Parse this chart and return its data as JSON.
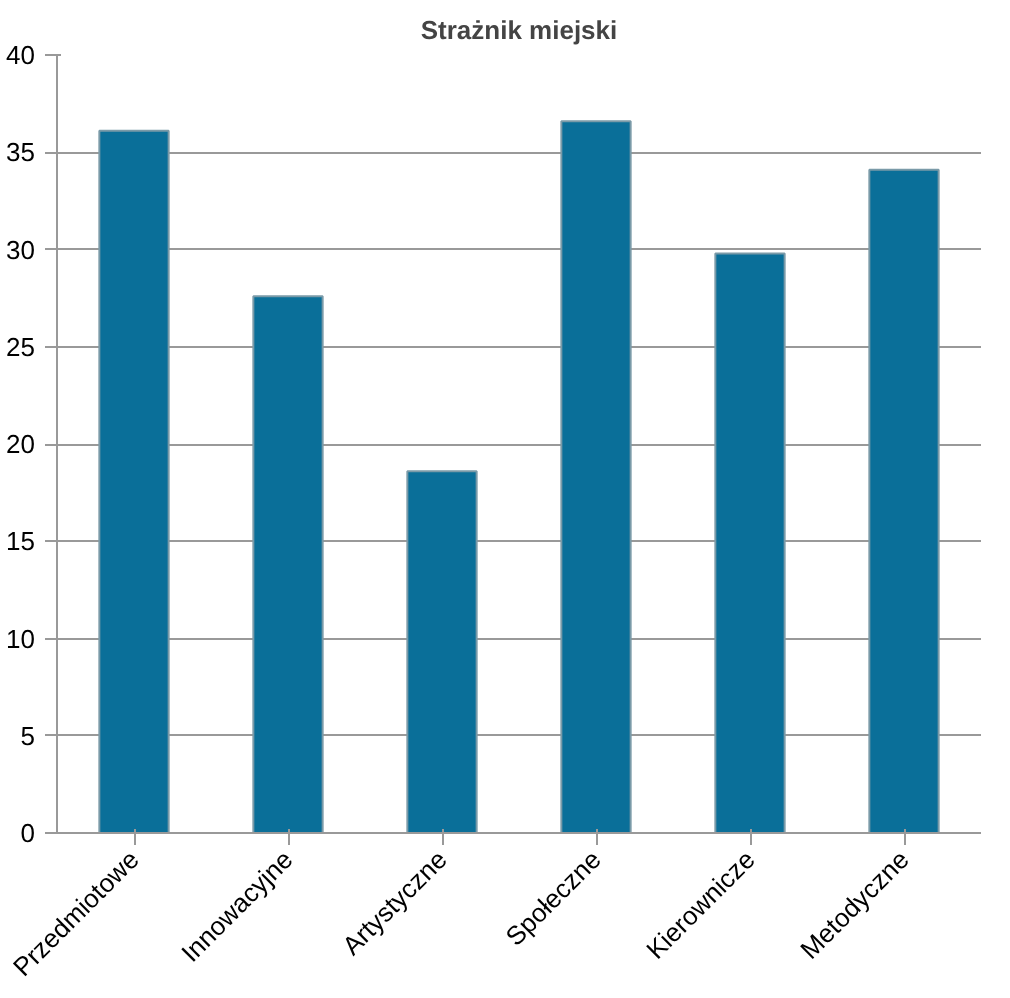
{
  "chart_data": {
    "type": "bar",
    "title": "Strażnik miejski",
    "categories": [
      "Przedmiotowe",
      "Innowacyjne",
      "Artystyczne",
      "Społeczne",
      "Kierownicze",
      "Metodyczne"
    ],
    "values": [
      36.1,
      27.6,
      18.6,
      36.6,
      29.8,
      34.1
    ],
    "color": "#0a6f99",
    "ylim": [
      0,
      40
    ],
    "yticks": [
      0,
      5,
      10,
      15,
      20,
      25,
      30,
      35,
      40
    ],
    "grid": "y"
  }
}
